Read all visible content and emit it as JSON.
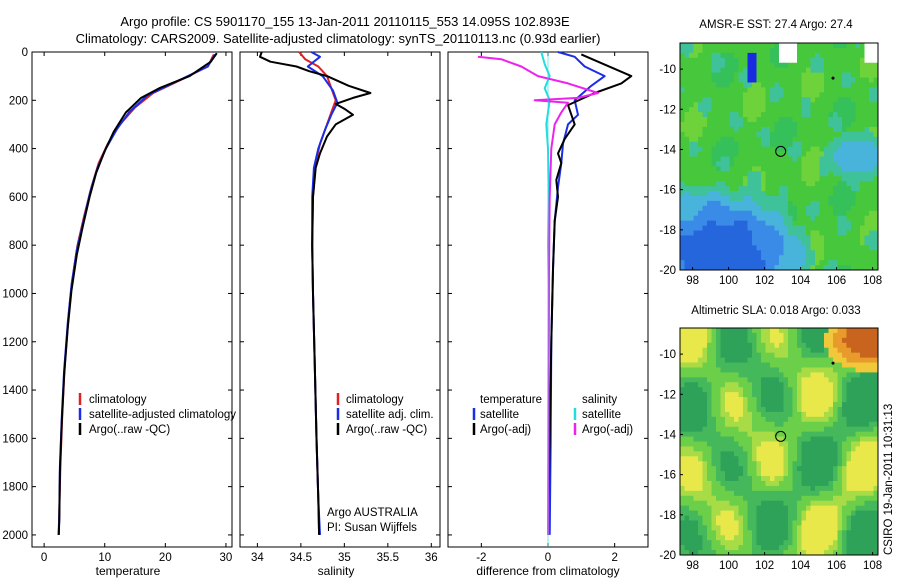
{
  "title_line1": "Argo profile: CS 5901170_155 13-Jan-2011 20110115_553 14.095S 102.893E",
  "title_line2": "Climatology: CARS2009. Satellite-adjusted climatology: synTS_20110113.nc (0.93d earlier)",
  "credit_vertical": "CSIRO 19-Jan-2011 10:31:13",
  "colors": {
    "climatology": "#dd2222",
    "satellite": "#1a2ee8",
    "argo": "#000000",
    "sal_satellite": "#22dddd",
    "sal_argo": "#ee22ee"
  },
  "chart_data": [
    {
      "type": "line",
      "name": "temperature-profile",
      "xlabel": "temperature",
      "xlim": [
        -2,
        31
      ],
      "ylim": [
        2050,
        0
      ],
      "xticks": [
        0,
        10,
        20,
        30
      ],
      "yticks": [
        0,
        200,
        400,
        600,
        800,
        1000,
        1200,
        1400,
        1600,
        1800,
        2000
      ],
      "legend": [
        "climatology",
        "satellite-adjusted climatology",
        "Argo(..raw -QC)"
      ],
      "series": [
        {
          "name": "climatology",
          "color": "#dd2222",
          "points": [
            [
              28,
              10
            ],
            [
              27,
              60
            ],
            [
              23,
              110
            ],
            [
              18,
              170
            ],
            [
              15,
              230
            ],
            [
              12.5,
              300
            ],
            [
              10.5,
              380
            ],
            [
              9,
              460
            ],
            [
              7.8,
              560
            ],
            [
              6.6,
              680
            ],
            [
              5.5,
              800
            ],
            [
              4.6,
              950
            ],
            [
              4,
              1100
            ],
            [
              3.4,
              1300
            ],
            [
              3,
              1500
            ],
            [
              2.7,
              1700
            ],
            [
              2.5,
              1900
            ],
            [
              2.4,
              2000
            ]
          ]
        },
        {
          "name": "satellite-adjusted climatology",
          "color": "#1a2ee8",
          "points": [
            [
              28.2,
              10
            ],
            [
              27,
              60
            ],
            [
              22,
              120
            ],
            [
              17,
              180
            ],
            [
              14,
              250
            ],
            [
              12,
              320
            ],
            [
              10.2,
              400
            ],
            [
              8.8,
              480
            ],
            [
              7.6,
              580
            ],
            [
              6.5,
              700
            ],
            [
              5.4,
              820
            ],
            [
              4.5,
              970
            ],
            [
              3.9,
              1120
            ],
            [
              3.3,
              1320
            ],
            [
              2.9,
              1520
            ],
            [
              2.6,
              1720
            ],
            [
              2.5,
              1920
            ],
            [
              2.4,
              2000
            ]
          ]
        },
        {
          "name": "Argo(..raw -QC)",
          "color": "#000000",
          "points": [
            [
              28.5,
              5
            ],
            [
              27.5,
              40
            ],
            [
              24,
              100
            ],
            [
              19,
              150
            ],
            [
              16,
              190
            ],
            [
              13.5,
              250
            ],
            [
              11.5,
              330
            ],
            [
              10,
              410
            ],
            [
              8.6,
              500
            ],
            [
              7.5,
              600
            ],
            [
              6.4,
              720
            ],
            [
              5.4,
              840
            ],
            [
              4.5,
              990
            ],
            [
              3.9,
              1140
            ],
            [
              3.3,
              1340
            ],
            [
              2.9,
              1540
            ],
            [
              2.6,
              1740
            ],
            [
              2.5,
              1940
            ],
            [
              2.4,
              2000
            ]
          ]
        }
      ]
    },
    {
      "type": "line",
      "name": "salinity-profile",
      "xlabel": "salinity",
      "xlim": [
        33.8,
        36.1
      ],
      "ylim": [
        2050,
        0
      ],
      "xticks": [
        34,
        34.5,
        35,
        35.5,
        36
      ],
      "legend": [
        "climatology",
        "satellite adj. clim.",
        "Argo(..raw -QC)"
      ],
      "annotation": [
        "Argo AUSTRALIA",
        "PI: Susan Wijffels"
      ],
      "series": [
        {
          "name": "climatology",
          "color": "#dd2222",
          "points": [
            [
              34.48,
              0
            ],
            [
              34.55,
              30
            ],
            [
              34.7,
              60
            ],
            [
              34.8,
              100
            ],
            [
              34.85,
              150
            ],
            [
              34.9,
              200
            ],
            [
              34.85,
              250
            ],
            [
              34.8,
              300
            ],
            [
              34.72,
              380
            ],
            [
              34.67,
              460
            ],
            [
              34.64,
              600
            ],
            [
              34.63,
              800
            ],
            [
              34.64,
              1000
            ],
            [
              34.66,
              1300
            ],
            [
              34.68,
              1600
            ],
            [
              34.7,
              1850
            ],
            [
              34.71,
              2000
            ]
          ]
        },
        {
          "name": "satellite adj. clim.",
          "color": "#1a2ee8",
          "points": [
            [
              34.62,
              0
            ],
            [
              34.72,
              20
            ],
            [
              34.58,
              60
            ],
            [
              34.75,
              100
            ],
            [
              34.87,
              160
            ],
            [
              34.92,
              210
            ],
            [
              34.85,
              260
            ],
            [
              34.78,
              320
            ],
            [
              34.7,
              400
            ],
            [
              34.65,
              480
            ],
            [
              34.63,
              600
            ],
            [
              34.63,
              800
            ],
            [
              34.64,
              1000
            ],
            [
              34.66,
              1300
            ],
            [
              34.68,
              1600
            ],
            [
              34.7,
              1850
            ],
            [
              34.72,
              2000
            ]
          ]
        },
        {
          "name": "Argo(..raw -QC)",
          "color": "#000000",
          "points": [
            [
              34.05,
              0
            ],
            [
              34.03,
              20
            ],
            [
              34.15,
              40
            ],
            [
              34.45,
              60
            ],
            [
              34.6,
              80
            ],
            [
              34.8,
              100
            ],
            [
              35.05,
              140
            ],
            [
              35.3,
              170
            ],
            [
              35.1,
              190
            ],
            [
              34.9,
              215
            ],
            [
              35.0,
              235
            ],
            [
              35.1,
              260
            ],
            [
              34.9,
              300
            ],
            [
              34.8,
              350
            ],
            [
              34.72,
              420
            ],
            [
              34.67,
              480
            ],
            [
              34.66,
              520
            ],
            [
              34.64,
              600
            ],
            [
              34.63,
              800
            ],
            [
              34.64,
              1000
            ],
            [
              34.66,
              1300
            ],
            [
              34.68,
              1600
            ],
            [
              34.7,
              1850
            ],
            [
              34.71,
              2000
            ]
          ]
        }
      ]
    },
    {
      "type": "line",
      "name": "difference-profile",
      "xlabel": "difference from climatology",
      "xlim": [
        -3,
        3
      ],
      "ylim": [
        2050,
        0
      ],
      "xticks": [
        -2,
        0,
        2
      ],
      "legend": [
        "temperature",
        "satellite",
        "Argo(-adj)",
        "salinity",
        "satellite",
        "Argo(-adj)"
      ],
      "series": [
        {
          "name": "temperature satellite",
          "color": "#1a2ee8",
          "points": [
            [
              0.3,
              0
            ],
            [
              0.8,
              20
            ],
            [
              1.1,
              60
            ],
            [
              1.7,
              100
            ],
            [
              1.3,
              140
            ],
            [
              0.8,
              200
            ],
            [
              0.9,
              260
            ],
            [
              0.6,
              300
            ],
            [
              0.45,
              380
            ],
            [
              0.4,
              460
            ],
            [
              0.3,
              560
            ],
            [
              0.2,
              700
            ],
            [
              0.15,
              900
            ],
            [
              0.1,
              1200
            ],
            [
              0.08,
              1600
            ],
            [
              0.05,
              2000
            ]
          ]
        },
        {
          "name": "temperature Argo(-adj)",
          "color": "#000000",
          "points": [
            [
              1.0,
              10
            ],
            [
              1.5,
              40
            ],
            [
              2.5,
              100
            ],
            [
              2.2,
              130
            ],
            [
              1.4,
              170
            ],
            [
              0.6,
              220
            ],
            [
              0.8,
              300
            ],
            [
              0.5,
              360
            ],
            [
              0.3,
              420
            ],
            [
              0.4,
              460
            ],
            [
              0.25,
              530
            ],
            [
              0.3,
              600
            ],
            [
              0.2,
              700
            ],
            [
              0.15,
              900
            ],
            [
              0.1,
              1200
            ],
            [
              0.05,
              1600
            ],
            [
              0.0,
              2000
            ]
          ]
        },
        {
          "name": "salinity satellite",
          "color": "#22dddd",
          "points": [
            [
              -0.2,
              0
            ],
            [
              -0.1,
              50
            ],
            [
              0.05,
              100
            ],
            [
              -0.1,
              150
            ],
            [
              0.05,
              200
            ],
            [
              -0.05,
              300
            ],
            [
              0.0,
              400
            ],
            [
              0.02,
              600
            ],
            [
              0.0,
              800
            ],
            [
              0.02,
              1000
            ],
            [
              0.01,
              1500
            ],
            [
              0.0,
              2000
            ]
          ]
        },
        {
          "name": "salinity Argo(-adj)",
          "color": "#ee22ee",
          "points": [
            [
              -2.1,
              20
            ],
            [
              -1.4,
              30
            ],
            [
              -0.8,
              60
            ],
            [
              -0.3,
              100
            ],
            [
              0.6,
              130
            ],
            [
              1.5,
              170
            ],
            [
              0.9,
              190
            ],
            [
              -0.4,
              200
            ],
            [
              0.6,
              210
            ],
            [
              0.4,
              250
            ],
            [
              0.2,
              300
            ],
            [
              0.1,
              400
            ],
            [
              0.05,
              600
            ],
            [
              0.03,
              900
            ],
            [
              0.02,
              1300
            ],
            [
              0.01,
              2000
            ]
          ]
        }
      ]
    },
    {
      "type": "heatmap",
      "name": "amsr-sst-map",
      "title": "AMSR-E SST: 27.4 Argo: 27.4",
      "xlim": [
        97.3,
        108.3
      ],
      "ylim": [
        -20,
        -8.7
      ],
      "xticks": [
        98,
        100,
        102,
        104,
        106,
        108
      ],
      "yticks": [
        -10,
        -12,
        -14,
        -16,
        -18,
        -20
      ],
      "marker": {
        "lon": 102.893,
        "lat": -14.095
      }
    },
    {
      "type": "heatmap",
      "name": "altimetric-sla-map",
      "title": "Altimetric SLA: 0.018 Argo: 0.033",
      "xlim": [
        97.3,
        108.3
      ],
      "ylim": [
        -20,
        -8.7
      ],
      "xticks": [
        98,
        100,
        102,
        104,
        106,
        108
      ],
      "yticks": [
        -10,
        -12,
        -14,
        -16,
        -18,
        -20
      ],
      "marker": {
        "lon": 102.893,
        "lat": -14.095
      }
    }
  ]
}
